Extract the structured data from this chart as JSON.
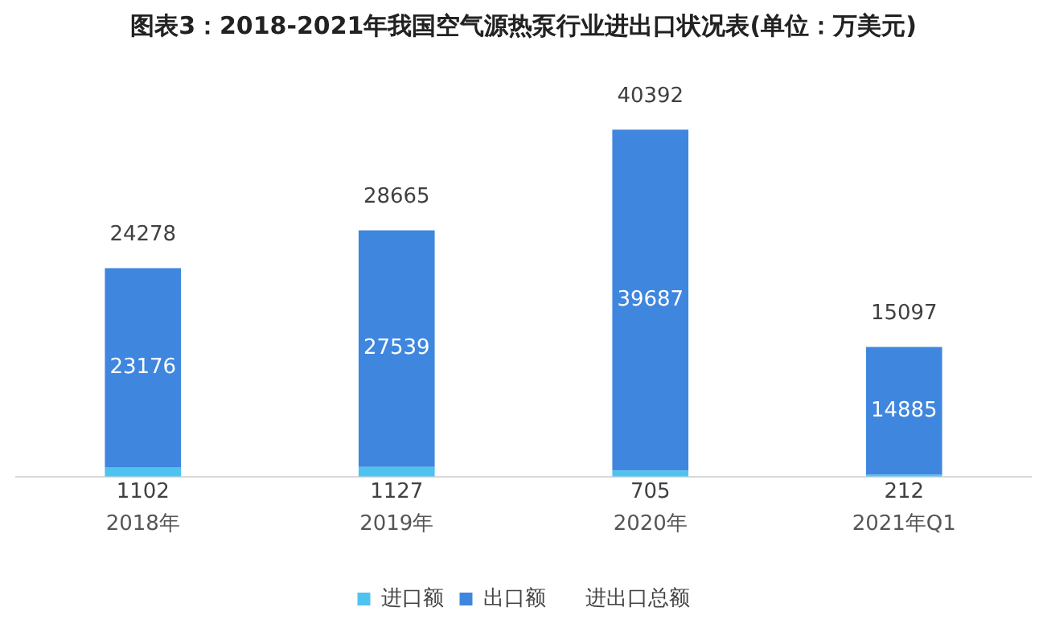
{
  "chart_data": {
    "type": "bar",
    "title": "图表3：2018-2021年我国空气源热泵行业进出口状况表(单位：万美元)",
    "categories": [
      "2018年",
      "2019年",
      "2020年",
      "2021年Q1"
    ],
    "stacked": true,
    "data_labels": true,
    "legend": "bottom",
    "grid": false,
    "series": [
      {
        "name": "进口额",
        "color": "#4fc3f0",
        "values": [
          1102,
          1127,
          705,
          212
        ]
      },
      {
        "name": "出口额",
        "color": "#3f86de",
        "values": [
          23176,
          27539,
          39687,
          14885
        ]
      }
    ],
    "totals": [
      "24278",
      "28665",
      "40392",
      "15097"
    ],
    "annotations": [
      "进出口总额"
    ]
  }
}
